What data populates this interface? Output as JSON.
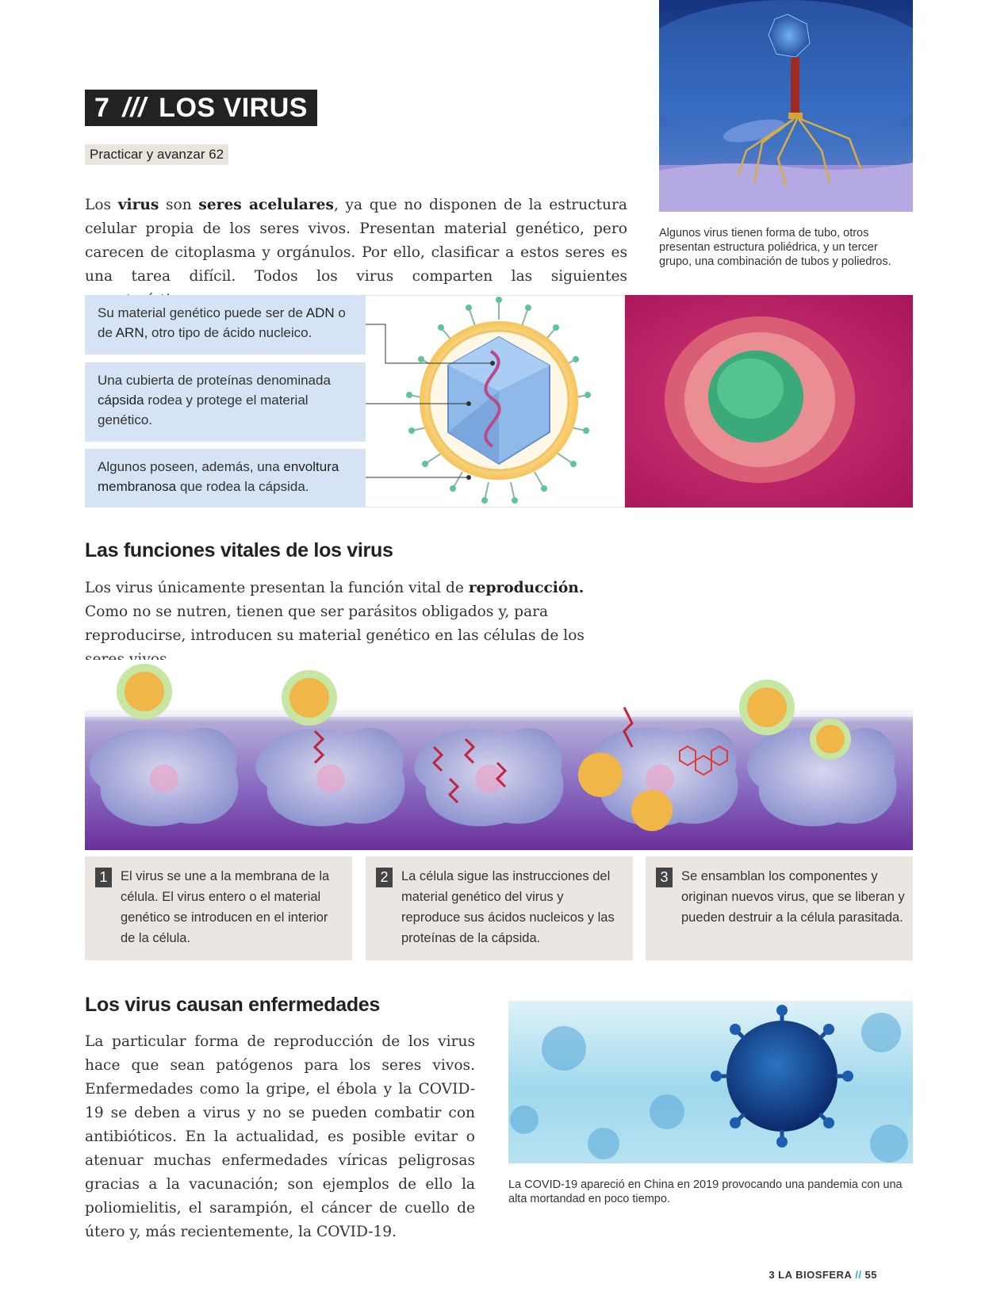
{
  "section": {
    "number": "7",
    "separator": "///",
    "title": "LOS VIRUS",
    "practice_tag": "Practicar y avanzar 62"
  },
  "intro": {
    "t1": "Los ",
    "b1": "virus",
    "t2": " son ",
    "b2": "seres acelulares",
    "t3": ", ya que no disponen de la estructura celular propia de los seres vivos. Presentan material genético, pero carecen de citoplasma y orgánulos. Por ello, clasificar a estos seres es una tarea difícil. Todos los virus comparten las siguientes características:"
  },
  "phage_caption": "Algunos virus tienen forma de tubo, otros presentan estructura poliédrica, y un tercer grupo, una combinación de tubos y poliedros.",
  "characteristics": {
    "c1": {
      "t1": "Su material genético puede ser de ",
      "h1": "ADN",
      "t2": " o de ",
      "h2": "ARN,",
      "t3": " otro tipo de ácido nucleico."
    },
    "c2": {
      "t1": "Una cubierta de proteínas denominada ",
      "h1": "cápsida",
      "t2": " rodea y protege el material genético."
    },
    "c3": {
      "t1": "Algunos poseen, además, una ",
      "h1": "envoltura membranosa",
      "t2": " que rodea la cápsida."
    }
  },
  "vital_functions": {
    "heading": "Las funciones vitales de los virus",
    "t1": "Los virus únicamente presentan la función vital de ",
    "b1": "reproducción.",
    "t2": " Como no se nutren, tienen que ser parásitos obligados y, para reproducirse, introducen su material genético en las células de los seres vivos."
  },
  "steps": [
    {
      "num": "1",
      "text": "El virus se une a la membrana de la célula. El virus entero o el material genético se introducen en el interior de la célula."
    },
    {
      "num": "2",
      "text": "La célula sigue las instrucciones del material genético del virus y reproduce sus ácidos nucleicos y las proteínas de la cápsida."
    },
    {
      "num": "3",
      "text": "Se ensamblan los componentes y originan nuevos virus, que se liberan y pueden destruir a la célula parasitada."
    }
  ],
  "diseases": {
    "heading": "Los virus causan enfermedades",
    "text": "La particular forma de reproducción de los virus hace que sean patógenos para los seres vivos. Enfermedades como la gripe, el ébola y la COVID-19 se deben a virus y no se pueden combatir con antibióticos. En la actualidad, es posible evitar o atenuar muchas enfermedades víricas peligrosas gracias a la vacunación; son ejemplos de ello la poliomielitis, el sarampión, el cáncer de cuello de útero y, más recientemente, la COVID-19.",
    "caption": "La COVID-19 apareció en China en 2019 provocando una pandemia con una alta mortandad en poco tiempo."
  },
  "footer": {
    "chapter": "3 LA BIOSFERA",
    "separator": "//",
    "page": "55"
  },
  "colors": {
    "info_box": "#d5e3f5",
    "step_box": "#ece6e2",
    "accent": "#2aa7d6"
  }
}
